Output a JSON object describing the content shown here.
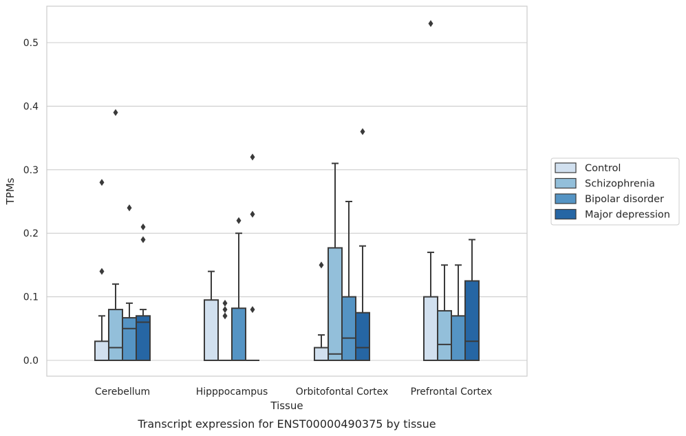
{
  "caption": "Transcript expression for ENST00000490375 by tissue",
  "chart_data": {
    "type": "box",
    "xlabel": "Tissue",
    "ylabel": "TPMs",
    "ylim": [
      -0.025,
      0.56
    ],
    "yticks": [
      0.0,
      0.1,
      0.2,
      0.3,
      0.4,
      0.5
    ],
    "ytick_labels": [
      "0.0",
      "0.1",
      "0.2",
      "0.3",
      "0.4",
      "0.5"
    ],
    "grid": "horizontal",
    "legend_position": "right",
    "categories": [
      "Cerebellum",
      "Hipppocampus",
      "Orbitofontal Cortex",
      "Prefrontal Cortex"
    ],
    "series": [
      {
        "name": "Control",
        "color": "#d1e0ef",
        "boxes": [
          {
            "whislo": 0.0,
            "q1": 0.0,
            "med": 0.0,
            "q3": 0.03,
            "whishi": 0.07,
            "fliers": [
              0.14,
              0.28
            ]
          },
          {
            "whislo": 0.0,
            "q1": 0.0,
            "med": 0.0,
            "q3": 0.095,
            "whishi": 0.14,
            "fliers": []
          },
          {
            "whislo": 0.0,
            "q1": 0.0,
            "med": 0.0,
            "q3": 0.02,
            "whishi": 0.04,
            "fliers": [
              0.15
            ]
          },
          {
            "whislo": 0.0,
            "q1": 0.0,
            "med": 0.0,
            "q3": 0.1,
            "whishi": 0.17,
            "fliers": [
              0.53
            ]
          }
        ]
      },
      {
        "name": "Schizophrenia",
        "color": "#93bfda",
        "boxes": [
          {
            "whislo": 0.0,
            "q1": 0.0,
            "med": 0.02,
            "q3": 0.08,
            "whishi": 0.12,
            "fliers": [
              0.39
            ]
          },
          {
            "whislo": 0.0,
            "q1": 0.0,
            "med": 0.0,
            "q3": 0.0,
            "whishi": 0.0,
            "fliers": [
              0.07,
              0.08,
              0.09
            ]
          },
          {
            "whislo": 0.0,
            "q1": 0.0,
            "med": 0.01,
            "q3": 0.177,
            "whishi": 0.31,
            "fliers": []
          },
          {
            "whislo": 0.0,
            "q1": 0.0,
            "med": 0.025,
            "q3": 0.078,
            "whishi": 0.15,
            "fliers": []
          }
        ]
      },
      {
        "name": "Bipolar disorder",
        "color": "#5594c4",
        "boxes": [
          {
            "whislo": 0.0,
            "q1": 0.0,
            "med": 0.05,
            "q3": 0.067,
            "whishi": 0.09,
            "fliers": [
              0.24
            ]
          },
          {
            "whislo": 0.0,
            "q1": 0.0,
            "med": 0.0,
            "q3": 0.082,
            "whishi": 0.2,
            "fliers": [
              0.22
            ]
          },
          {
            "whislo": 0.0,
            "q1": 0.0,
            "med": 0.035,
            "q3": 0.1,
            "whishi": 0.25,
            "fliers": []
          },
          {
            "whislo": 0.0,
            "q1": 0.0,
            "med": 0.0,
            "q3": 0.07,
            "whishi": 0.15,
            "fliers": []
          }
        ]
      },
      {
        "name": "Major depression",
        "color": "#2666a4",
        "boxes": [
          {
            "whislo": 0.0,
            "q1": 0.0,
            "med": 0.06,
            "q3": 0.07,
            "whishi": 0.08,
            "fliers": [
              0.19,
              0.21
            ]
          },
          {
            "whislo": 0.0,
            "q1": 0.0,
            "med": 0.0,
            "q3": 0.0,
            "whishi": 0.0,
            "fliers": [
              0.08,
              0.23,
              0.32
            ]
          },
          {
            "whislo": 0.0,
            "q1": 0.0,
            "med": 0.02,
            "q3": 0.075,
            "whishi": 0.18,
            "fliers": [
              0.36
            ]
          },
          {
            "whislo": 0.0,
            "q1": 0.0,
            "med": 0.03,
            "q3": 0.125,
            "whishi": 0.19,
            "fliers": []
          }
        ]
      }
    ]
  }
}
